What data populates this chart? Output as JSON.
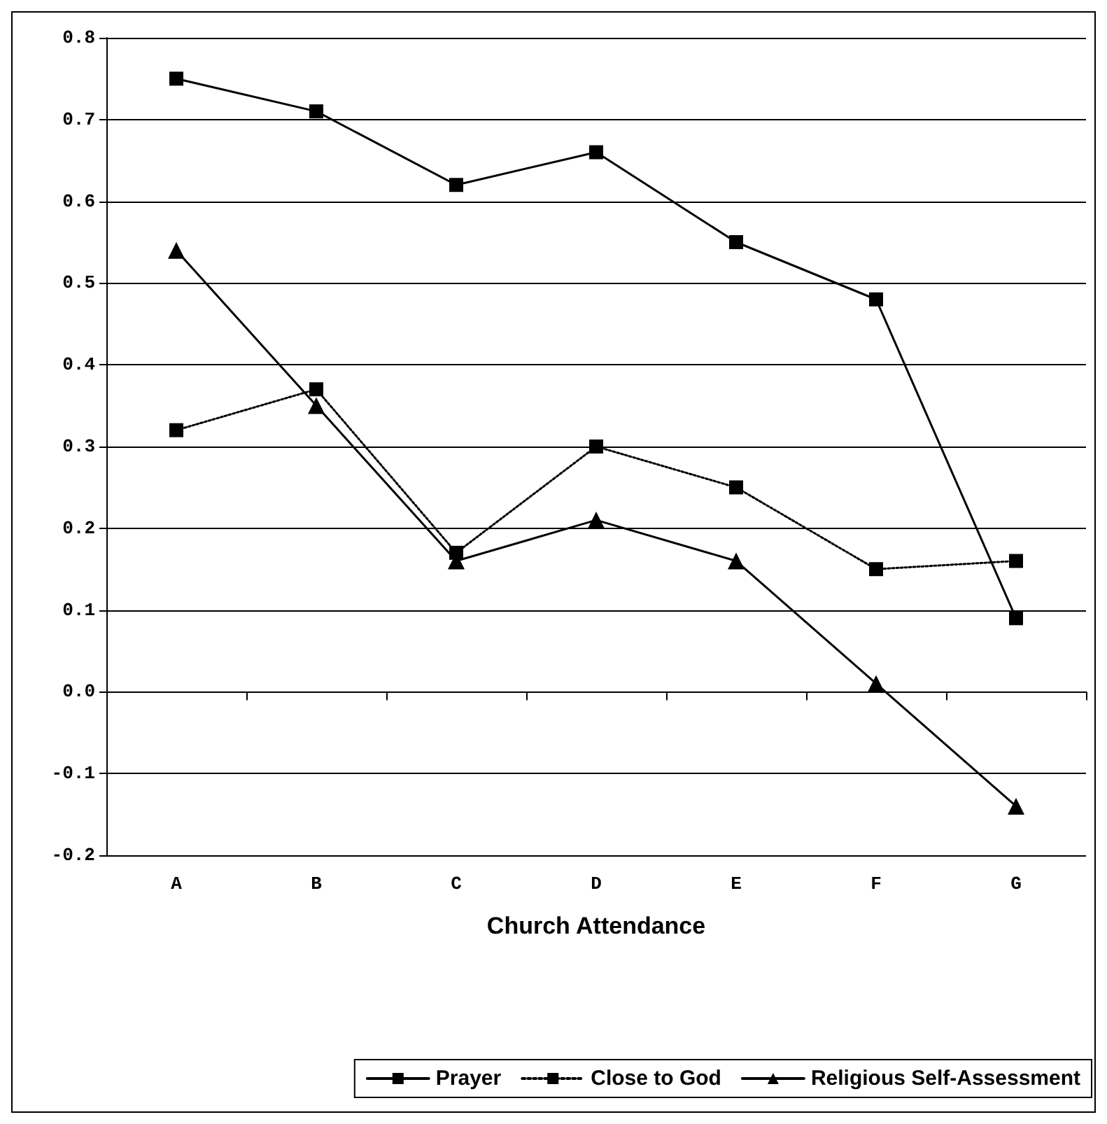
{
  "chart_data": {
    "type": "line",
    "xlabel": "Church Attendance",
    "categories": [
      "A",
      "B",
      "C",
      "D",
      "E",
      "F",
      "G"
    ],
    "series": [
      {
        "name": "Prayer",
        "color": "#000000",
        "marker": "square",
        "line_style": "solid",
        "values": [
          0.75,
          0.71,
          0.62,
          0.66,
          0.55,
          0.48,
          0.09
        ]
      },
      {
        "name": "Close to God",
        "color": "#000000",
        "marker": "square",
        "line_style": "dotted",
        "values": [
          0.32,
          0.37,
          0.17,
          0.3,
          0.25,
          0.15,
          0.16
        ]
      },
      {
        "name": "Religious Self-Assessment",
        "color": "#000000",
        "marker": "triangle",
        "line_style": "solid",
        "values": [
          0.54,
          0.35,
          0.16,
          0.21,
          0.16,
          0.01,
          -0.14
        ]
      }
    ],
    "ylim": [
      -0.2,
      0.8
    ],
    "yticks": [
      -0.2,
      -0.1,
      {
        "value": 0,
        "label": "0.0"
      },
      0.1,
      0.2,
      0.3,
      0.4,
      0.5,
      0.6,
      0.7,
      0.8
    ],
    "grid": "y",
    "legend": "bottom"
  }
}
